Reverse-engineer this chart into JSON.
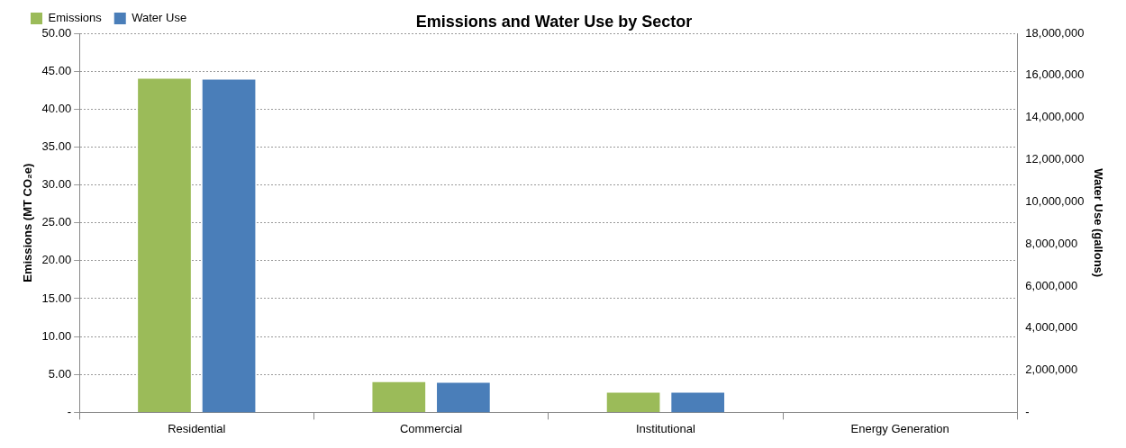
{
  "chart_data": {
    "type": "bar",
    "title": "Emissions and Water Use by Sector",
    "ylabel": "Emissions (MT CO₂e)",
    "y2label": "Water Use (gallons)",
    "categories": [
      "Residential",
      "Commercial",
      "Institutional",
      "Energy Generation"
    ],
    "series": [
      {
        "name": "Emissions",
        "color": "#9bbb59",
        "values": [
          44.0,
          4.0,
          2.6,
          0
        ]
      },
      {
        "name": "Water Use",
        "color": "#4a7eb9",
        "axis": "y2",
        "values": [
          15800000,
          1410000,
          940000,
          0
        ]
      }
    ],
    "ylim": [
      0,
      50
    ],
    "yticks": [
      {
        "value": 0,
        "label": "-"
      },
      {
        "value": 5,
        "label": "5.00"
      },
      {
        "value": 10,
        "label": "10.00"
      },
      {
        "value": 15,
        "label": "15.00"
      },
      {
        "value": 20,
        "label": "20.00"
      },
      {
        "value": 25,
        "label": "25.00"
      },
      {
        "value": 30,
        "label": "30.00"
      },
      {
        "value": 35,
        "label": "35.00"
      },
      {
        "value": 40,
        "label": "40.00"
      },
      {
        "value": 45,
        "label": "45.00"
      },
      {
        "value": 50,
        "label": "50.00"
      }
    ],
    "y2lim": [
      0,
      18000000
    ],
    "y2ticks": [
      {
        "value": 0,
        "label": "-"
      },
      {
        "value": 2000000,
        "label": "2,000,000"
      },
      {
        "value": 4000000,
        "label": "4,000,000"
      },
      {
        "value": 6000000,
        "label": "6,000,000"
      },
      {
        "value": 8000000,
        "label": "8,000,000"
      },
      {
        "value": 10000000,
        "label": "10,000,000"
      },
      {
        "value": 12000000,
        "label": "12,000,000"
      },
      {
        "value": 14000000,
        "label": "14,000,000"
      },
      {
        "value": 16000000,
        "label": "16,000,000"
      },
      {
        "value": 18000000,
        "label": "18,000,000"
      }
    ],
    "grid": "y",
    "legend": "top left"
  }
}
